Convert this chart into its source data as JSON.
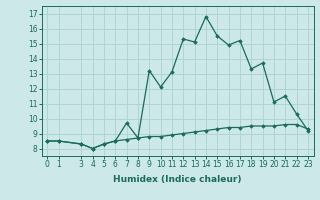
{
  "xlabel": "Humidex (Indice chaleur)",
  "background_color": "#cce8e8",
  "grid_color": "#aed4d4",
  "line_color": "#1a6b5a",
  "x_values": [
    0,
    1,
    3,
    4,
    5,
    6,
    7,
    8,
    9,
    10,
    11,
    12,
    13,
    14,
    15,
    16,
    17,
    18,
    19,
    20,
    21,
    22,
    23
  ],
  "line1_y": [
    8.5,
    8.5,
    8.3,
    8.0,
    8.3,
    8.5,
    9.7,
    8.7,
    13.2,
    12.1,
    13.1,
    15.3,
    15.1,
    16.8,
    15.5,
    14.9,
    15.2,
    13.3,
    13.7,
    11.1,
    11.5,
    10.3,
    9.2
  ],
  "line2_y": [
    8.5,
    8.5,
    8.3,
    8.0,
    8.3,
    8.5,
    8.6,
    8.7,
    8.8,
    8.8,
    8.9,
    9.0,
    9.1,
    9.2,
    9.3,
    9.4,
    9.4,
    9.5,
    9.5,
    9.5,
    9.6,
    9.6,
    9.3
  ],
  "ylim": [
    7.5,
    17.5
  ],
  "xlim": [
    -0.5,
    23.5
  ],
  "yticks": [
    8,
    9,
    10,
    11,
    12,
    13,
    14,
    15,
    16,
    17
  ],
  "xticks": [
    0,
    1,
    3,
    4,
    5,
    6,
    7,
    8,
    9,
    10,
    11,
    12,
    13,
    14,
    15,
    16,
    17,
    18,
    19,
    20,
    21,
    22,
    23
  ],
  "tick_fontsize": 5.5,
  "xlabel_fontsize": 6.5
}
